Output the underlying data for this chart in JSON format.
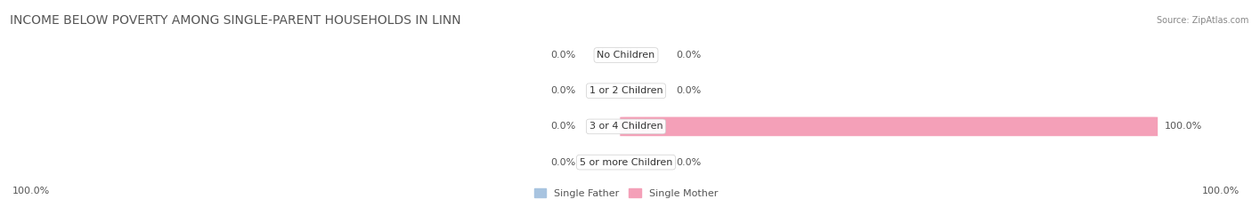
{
  "title": "INCOME BELOW POVERTY AMONG SINGLE-PARENT HOUSEHOLDS IN LINN",
  "source": "Source: ZipAtlas.com",
  "categories": [
    "No Children",
    "1 or 2 Children",
    "3 or 4 Children",
    "5 or more Children"
  ],
  "single_father": [
    0.0,
    0.0,
    0.0,
    0.0
  ],
  "single_mother": [
    0.0,
    0.0,
    100.0,
    0.0
  ],
  "father_color": "#a8c4e0",
  "mother_color": "#f4a0b8",
  "bar_bg_color": "#e8e8e8",
  "row_bg_colors": [
    "#f0f0f0",
    "#ffffff",
    "#f0f0f0",
    "#ffffff"
  ],
  "bottom_left_label": "100.0%",
  "bottom_right_label": "100.0%",
  "title_fontsize": 10,
  "label_fontsize": 8,
  "category_fontsize": 8,
  "axis_label_fontsize": 8
}
